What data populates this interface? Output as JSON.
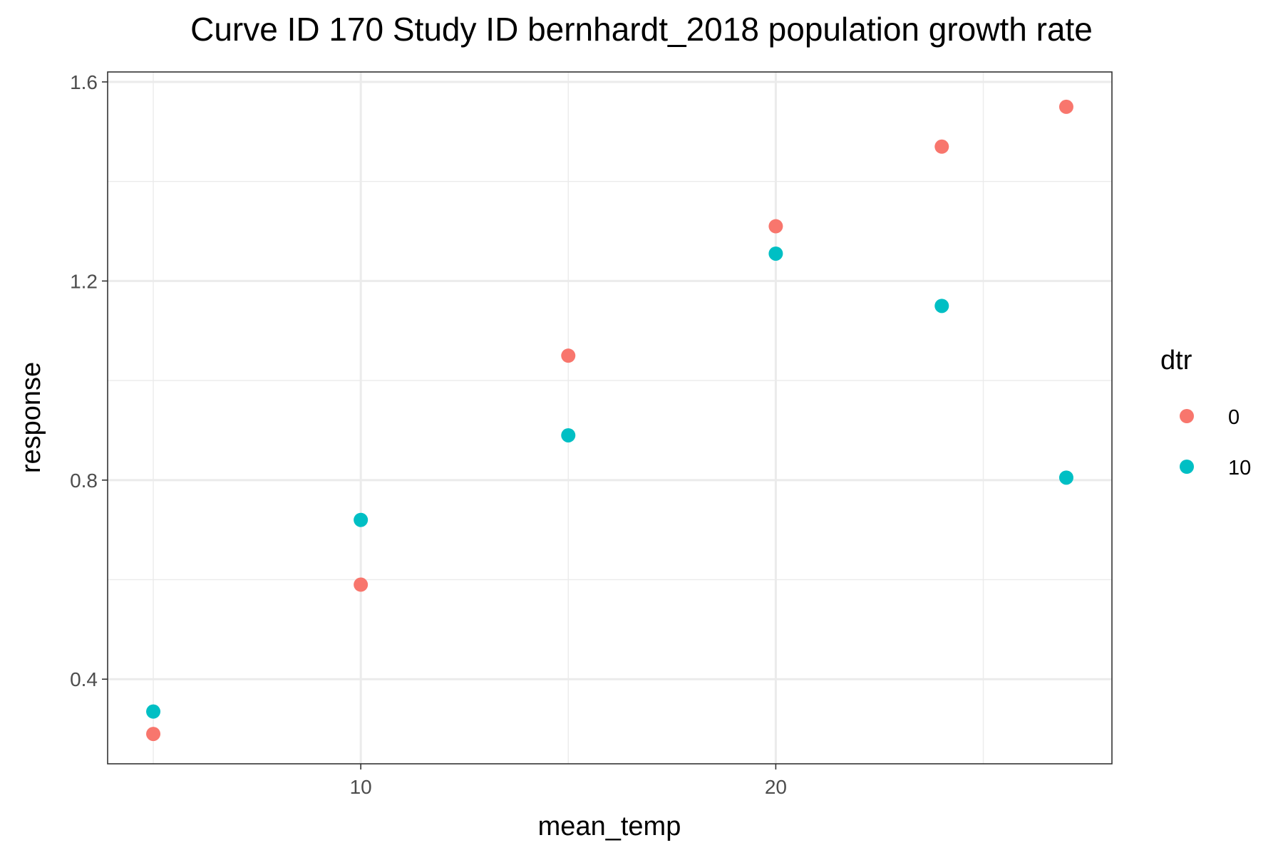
{
  "chart_data": {
    "type": "scatter",
    "title": "Curve ID 170 Study ID bernhardt_2018 population growth rate",
    "xlabel": "mean_temp",
    "ylabel": "response",
    "xlim": [
      3.9,
      28.1
    ],
    "ylim": [
      0.23,
      1.62
    ],
    "x_ticks": [
      10,
      20
    ],
    "x_minor_ticks": [
      5,
      15,
      25
    ],
    "y_ticks": [
      0.4,
      0.8,
      1.2,
      1.6
    ],
    "y_minor_ticks": [
      0.6,
      1.0,
      1.4
    ],
    "grid": true,
    "legend": {
      "title": "dtr",
      "position": "right"
    },
    "series": [
      {
        "name": "0",
        "color": "#F8766D",
        "points": [
          {
            "x": 5,
            "y": 0.29
          },
          {
            "x": 10,
            "y": 0.59
          },
          {
            "x": 15,
            "y": 1.05
          },
          {
            "x": 20,
            "y": 1.31
          },
          {
            "x": 24,
            "y": 1.47
          },
          {
            "x": 27,
            "y": 1.55
          }
        ]
      },
      {
        "name": "10",
        "color": "#00BFC4",
        "points": [
          {
            "x": 5,
            "y": 0.335
          },
          {
            "x": 10,
            "y": 0.72
          },
          {
            "x": 15,
            "y": 0.89
          },
          {
            "x": 20,
            "y": 1.255
          },
          {
            "x": 24,
            "y": 1.15
          },
          {
            "x": 27,
            "y": 0.805
          }
        ]
      }
    ]
  }
}
